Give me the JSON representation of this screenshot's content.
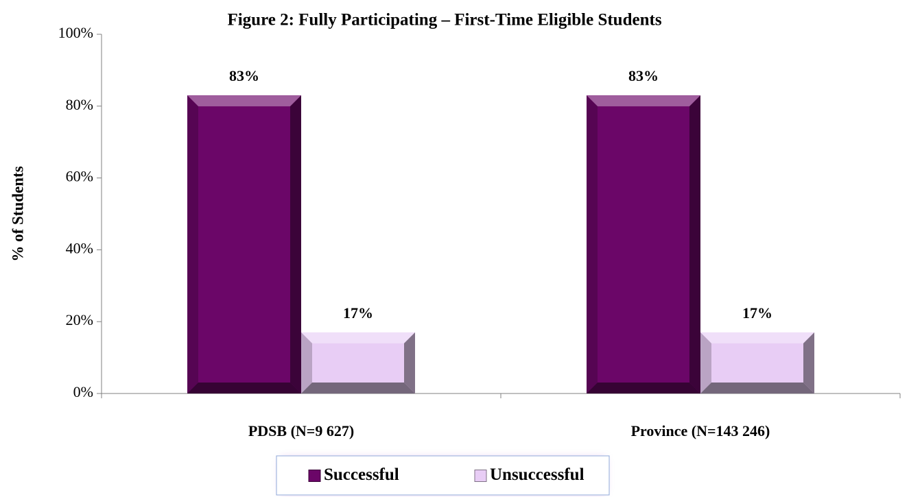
{
  "chart_data": {
    "type": "bar",
    "title": "Figure 2:  Fully Participating – First-Time Eligible Students",
    "y_label": "% of Students",
    "categories": [
      "PDSB (N=9 627)",
      "Province (N=143 246)"
    ],
    "series": [
      {
        "name": "Successful",
        "color": "#6b0668",
        "values": [
          83,
          83
        ],
        "value_labels": [
          "83%",
          "83%"
        ]
      },
      {
        "name": "Unsuccessful",
        "color": "#e8cdf5",
        "values": [
          17,
          17
        ],
        "value_labels": [
          "17%",
          "17%"
        ]
      }
    ],
    "ylim": [
      0,
      100
    ],
    "yticks": [
      {
        "value": 0,
        "label": "0%"
      },
      {
        "value": 20,
        "label": "20%"
      },
      {
        "value": 40,
        "label": "40%"
      },
      {
        "value": 60,
        "label": "60%"
      },
      {
        "value": 80,
        "label": "80%"
      },
      {
        "value": 100,
        "label": "100%"
      }
    ],
    "legend": "bottom"
  }
}
